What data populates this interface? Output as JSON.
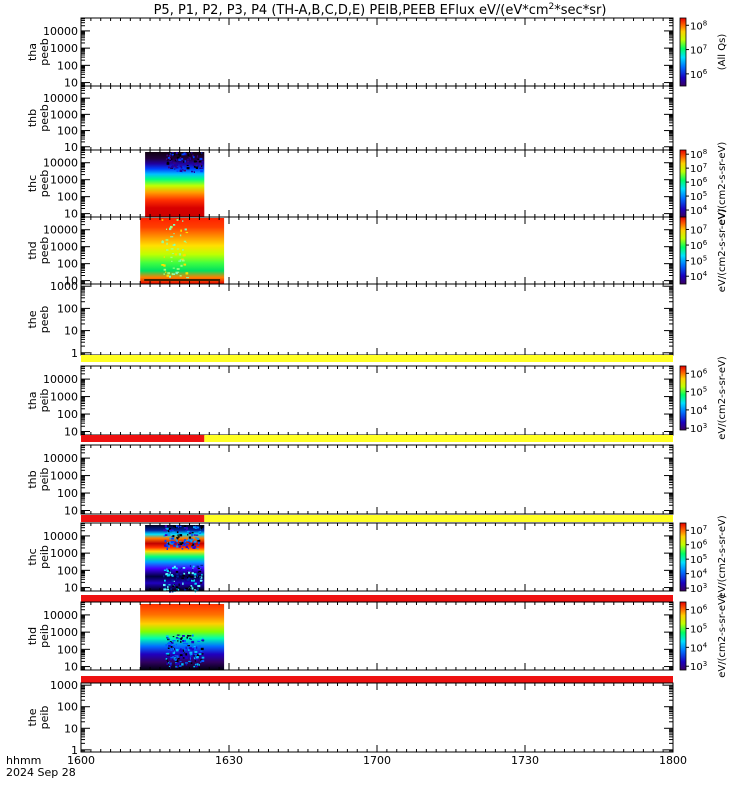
{
  "header": {
    "title_prefix": "P5, P1, P2, P3, P4 (TH-A,B,C,D,E) PEIB,PEEB EFlux eV/(eV*cm",
    "title_sup": "2",
    "title_suffix": "*sec*sr)"
  },
  "footer": {
    "time_label": "hhmm",
    "date_label": "2024 Sep 28"
  },
  "chart_data": {
    "type": "heatmap",
    "title": "P5, P1, P2, P3, P4 (TH-A,B,C,D,E) PEIB,PEEB EFlux eV/(eV*cm2*sec*sr)",
    "x_range_minutes": [
      960,
      1080
    ],
    "x_ticks": [
      {
        "m": 960,
        "label": "1600"
      },
      {
        "m": 990,
        "label": "1630"
      },
      {
        "m": 1020,
        "label": "1700"
      },
      {
        "m": 1050,
        "label": "1730"
      },
      {
        "m": 1080,
        "label": "1800"
      }
    ],
    "colors": {
      "flag_red": "#ee1111",
      "flag_yellow": "#ffff22",
      "flag_black": "#000000"
    },
    "panels": [
      {
        "id": "tha-peeb",
        "ylabel": [
          "tha",
          "peeb"
        ],
        "yticks": [
          "10",
          "100",
          "1000",
          "10000"
        ],
        "ylog": [
          0.8,
          4.75
        ],
        "colorbar": {
          "ticks": [
            "10^6",
            "10^7",
            "10^8"
          ],
          "range": [
            5.5,
            8.3
          ],
          "label": "(All Qs)"
        },
        "data_spans": [],
        "flags": []
      },
      {
        "id": "thb-peeb",
        "ylabel": [
          "thb",
          "peeb"
        ],
        "yticks": [
          "10",
          "100",
          "1000",
          "10000"
        ],
        "ylog": [
          0.8,
          4.75
        ],
        "colorbar": null,
        "data_spans": [],
        "flags": []
      },
      {
        "id": "thc-peeb",
        "ylabel": [
          "thc",
          "peeb"
        ],
        "yticks": [
          "10",
          "100",
          "1000",
          "10000"
        ],
        "ylog": [
          0.8,
          4.75
        ],
        "colorbar": {
          "ticks": [
            "10^4",
            "10^5",
            "10^6",
            "10^7",
            "10^8"
          ],
          "range": [
            3.5,
            8.3
          ],
          "label": "eV/(cm2-s-sr-eV)"
        },
        "data_spans": [
          {
            "start": 973,
            "end": 985,
            "style": "thc-peeb"
          }
        ],
        "flags": []
      },
      {
        "id": "thd-peeb",
        "ylabel": [
          "thd",
          "peeb"
        ],
        "yticks": [
          "10",
          "100",
          "1000",
          "10000"
        ],
        "ylog": [
          0.8,
          4.75
        ],
        "colorbar": {
          "ticks": [
            "10^4",
            "10^5",
            "10^6",
            "10^7"
          ],
          "range": [
            3.5,
            7.8
          ],
          "label": "eV/(cm2-s-sr-eV)"
        },
        "data_spans": [
          {
            "start": 972,
            "end": 989,
            "style": "thd-peeb"
          }
        ],
        "flags": []
      },
      {
        "id": "the-peeb",
        "ylabel": [
          "the",
          "peeb"
        ],
        "yticks": [
          "1",
          "10",
          "100",
          "1000"
        ],
        "ylog": [
          -0.1,
          3.1
        ],
        "colorbar": null,
        "data_spans": [],
        "flags": [
          {
            "start": 960,
            "end": 1080,
            "color": "flag_yellow"
          }
        ]
      },
      {
        "id": "tha-peib",
        "ylabel": [
          "tha",
          "peib"
        ],
        "yticks": [
          "10",
          "100",
          "1000",
          "10000"
        ],
        "ylog": [
          0.8,
          4.75
        ],
        "colorbar": {
          "ticks": [
            "10^3",
            "10^4",
            "10^5",
            "10^6"
          ],
          "range": [
            2.9,
            6.4
          ],
          "label": "eV/(cm2-s-sr-eV)"
        },
        "data_spans": [],
        "flags": [
          {
            "start": 960,
            "end": 985,
            "color": "flag_red"
          },
          {
            "start": 985,
            "end": 1080,
            "color": "flag_yellow"
          }
        ]
      },
      {
        "id": "thb-peib",
        "ylabel": [
          "thb",
          "peib"
        ],
        "yticks": [
          "10",
          "100",
          "1000",
          "10000"
        ],
        "ylog": [
          0.8,
          4.75
        ],
        "colorbar": null,
        "data_spans": [],
        "flags": [
          {
            "start": 960,
            "end": 985,
            "color": "flag_red"
          },
          {
            "start": 985,
            "end": 1080,
            "color": "flag_yellow"
          }
        ]
      },
      {
        "id": "thc-peib",
        "ylabel": [
          "thc",
          "peib"
        ],
        "yticks": [
          "10",
          "100",
          "1000",
          "10000"
        ],
        "ylog": [
          0.8,
          4.75
        ],
        "colorbar": {
          "ticks": [
            "10^3",
            "10^4",
            "10^5",
            "10^6",
            "10^7"
          ],
          "range": [
            2.8,
            7.5
          ],
          "label": "eV/(cm2-s-sr-eV)"
        },
        "data_spans": [
          {
            "start": 973,
            "end": 985,
            "style": "thc-peib"
          }
        ],
        "flags": [
          {
            "start": 960,
            "end": 1080,
            "color": "flag_red"
          }
        ]
      },
      {
        "id": "thd-peib",
        "ylabel": [
          "thd",
          "peib"
        ],
        "yticks": [
          "10",
          "100",
          "1000",
          "10000"
        ],
        "ylog": [
          0.8,
          4.75
        ],
        "colorbar": {
          "ticks": [
            "10^3",
            "10^4",
            "10^5",
            "10^6"
          ],
          "range": [
            2.8,
            6.4
          ],
          "label": "eV/(cm2-s-sr-eV)"
        },
        "data_spans": [
          {
            "start": 972,
            "end": 989,
            "style": "thd-peib"
          }
        ],
        "flags": [
          {
            "start": 960,
            "end": 1080,
            "color": "flag_red"
          }
        ]
      },
      {
        "id": "the-peib",
        "ylabel": [
          "the",
          "peib"
        ],
        "yticks": [
          "1",
          "10",
          "100",
          "1000"
        ],
        "ylog": [
          -0.1,
          3.1
        ],
        "colorbar": null,
        "data_spans": [],
        "flags": []
      }
    ]
  }
}
